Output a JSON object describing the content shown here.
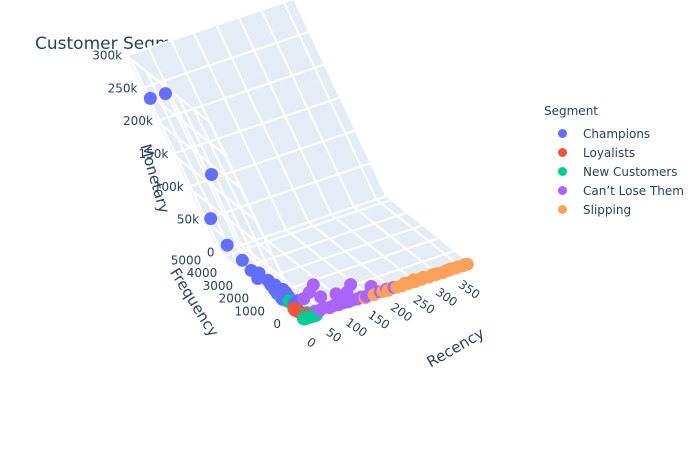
{
  "chart_data": {
    "type": "scatter3d",
    "title": "Customer Segmentation",
    "axes": {
      "x": {
        "label": "Recency",
        "range": [
          0,
          370
        ],
        "ticks": [
          0,
          50,
          100,
          150,
          200,
          250,
          300,
          350
        ],
        "tick_labels": [
          "0",
          "50",
          "100",
          "150",
          "200",
          "250",
          "300",
          "350"
        ]
      },
      "y": {
        "label": "Frequency",
        "range": [
          0,
          5300
        ],
        "ticks": [
          0,
          1000,
          2000,
          3000,
          4000,
          5000
        ],
        "tick_labels": [
          "0",
          "1000",
          "2000",
          "3000",
          "4000",
          "5000"
        ]
      },
      "z": {
        "label": "Monetary",
        "range": [
          0,
          300000
        ],
        "ticks": [
          0,
          50000,
          100000,
          150000,
          200000,
          250000,
          300000
        ],
        "tick_labels": [
          "0",
          "50k",
          "100k",
          "150k",
          "200k",
          "250k",
          "300k"
        ]
      }
    },
    "legend": {
      "title": "Segment",
      "position": "top-right"
    },
    "series": [
      {
        "name": "Champions",
        "color": "#636efa",
        "points": [
          [
            2,
            5000,
            240000
          ],
          [
            3,
            3300,
            280000
          ],
          [
            5,
            2600,
            170000
          ],
          [
            6,
            4800,
            60000
          ],
          [
            8,
            4500,
            25000
          ],
          [
            10,
            3800,
            15000
          ],
          [
            12,
            3500,
            5000
          ],
          [
            4,
            2800,
            8000
          ],
          [
            15,
            3000,
            10000
          ],
          [
            7,
            2000,
            20000
          ],
          [
            18,
            2500,
            4000
          ],
          [
            20,
            2200,
            6000
          ],
          [
            9,
            1800,
            3000
          ],
          [
            14,
            1600,
            5000
          ],
          [
            22,
            1500,
            2000
          ],
          [
            25,
            1900,
            4000
          ],
          [
            11,
            1200,
            2500
          ],
          [
            16,
            2400,
            3000
          ],
          [
            6,
            1400,
            3000
          ],
          [
            19,
            1300,
            2000
          ],
          [
            13,
            2100,
            2500
          ],
          [
            24,
            1700,
            3500
          ],
          [
            28,
            1100,
            1500
          ],
          [
            17,
            1000,
            2000
          ]
        ]
      },
      {
        "name": "Loyalists",
        "color": "#ef553b",
        "points": [
          [
            5,
            600,
            2000
          ],
          [
            8,
            450,
            1500
          ],
          [
            12,
            380,
            1200
          ],
          [
            15,
            300,
            1000
          ],
          [
            10,
            520,
            1800
          ],
          [
            18,
            250,
            800
          ],
          [
            6,
            700,
            2500
          ],
          [
            20,
            200,
            700
          ],
          [
            14,
            330,
            1000
          ],
          [
            9,
            410,
            1300
          ],
          [
            22,
            180,
            600
          ],
          [
            25,
            150,
            500
          ]
        ]
      },
      {
        "name": "New Customers",
        "color": "#00cc96",
        "points": [
          [
            3,
            50,
            300
          ],
          [
            5,
            40,
            250
          ],
          [
            8,
            30,
            200
          ],
          [
            10,
            60,
            400
          ],
          [
            12,
            25,
            180
          ],
          [
            15,
            35,
            220
          ],
          [
            18,
            20,
            150
          ],
          [
            20,
            45,
            280
          ],
          [
            22,
            15,
            120
          ],
          [
            25,
            30,
            200
          ],
          [
            28,
            20,
            160
          ],
          [
            30,
            10,
            100
          ],
          [
            6,
            80,
            500
          ],
          [
            9,
            70,
            450
          ],
          [
            14,
            55,
            350
          ],
          [
            16,
            65,
            380
          ],
          [
            4,
            25,
            150
          ],
          [
            11,
            40,
            250
          ],
          [
            24,
            50,
            300
          ],
          [
            26,
            10,
            80
          ],
          [
            7,
            1500,
            3000
          ],
          [
            13,
            1200,
            2500
          ],
          [
            19,
            300,
            800
          ],
          [
            21,
            250,
            700
          ]
        ]
      },
      {
        "name": "Can’t Lose Them",
        "color": "#ab63fa",
        "points": [
          [
            35,
            200,
            1500
          ],
          [
            45,
            180,
            1200
          ],
          [
            55,
            220,
            1800
          ],
          [
            65,
            150,
            1000
          ],
          [
            75,
            170,
            1300
          ],
          [
            85,
            140,
            900
          ],
          [
            95,
            160,
            1100
          ],
          [
            105,
            130,
            800
          ],
          [
            115,
            150,
            1000
          ],
          [
            125,
            120,
            700
          ],
          [
            135,
            140,
            900
          ],
          [
            145,
            110,
            600
          ],
          [
            160,
            130,
            800
          ],
          [
            175,
            100,
            500
          ],
          [
            190,
            120,
            700
          ],
          [
            205,
            90,
            400
          ],
          [
            60,
            1200,
            5000
          ],
          [
            80,
            1500,
            6000
          ],
          [
            140,
            900,
            4000
          ],
          [
            100,
            700,
            3000
          ],
          [
            40,
            1000,
            4000
          ],
          [
            70,
            800,
            3500
          ],
          [
            120,
            600,
            2500
          ],
          [
            170,
            500,
            2000
          ]
        ]
      },
      {
        "name": "Slipping",
        "color": "#ffa15a",
        "points": [
          [
            220,
            30,
            300
          ],
          [
            235,
            40,
            400
          ],
          [
            250,
            25,
            250
          ],
          [
            265,
            35,
            350
          ],
          [
            280,
            20,
            200
          ],
          [
            295,
            30,
            300
          ],
          [
            310,
            15,
            150
          ],
          [
            325,
            25,
            250
          ],
          [
            340,
            20,
            200
          ],
          [
            355,
            10,
            100
          ],
          [
            365,
            15,
            150
          ],
          [
            240,
            60,
            500
          ],
          [
            260,
            50,
            450
          ],
          [
            300,
            45,
            400
          ],
          [
            320,
            40,
            350
          ],
          [
            345,
            35,
            300
          ],
          [
            200,
            80,
            600
          ],
          [
            180,
            70,
            550
          ],
          [
            230,
            100,
            800
          ],
          [
            270,
            90,
            700
          ],
          [
            360,
            30,
            250
          ],
          [
            330,
            50,
            400
          ],
          [
            290,
            70,
            550
          ],
          [
            250,
            120,
            900
          ],
          [
            210,
            50,
            400
          ],
          [
            190,
            40,
            350
          ],
          [
            160,
            60,
            450
          ],
          [
            140,
            55,
            400
          ]
        ]
      }
    ]
  }
}
